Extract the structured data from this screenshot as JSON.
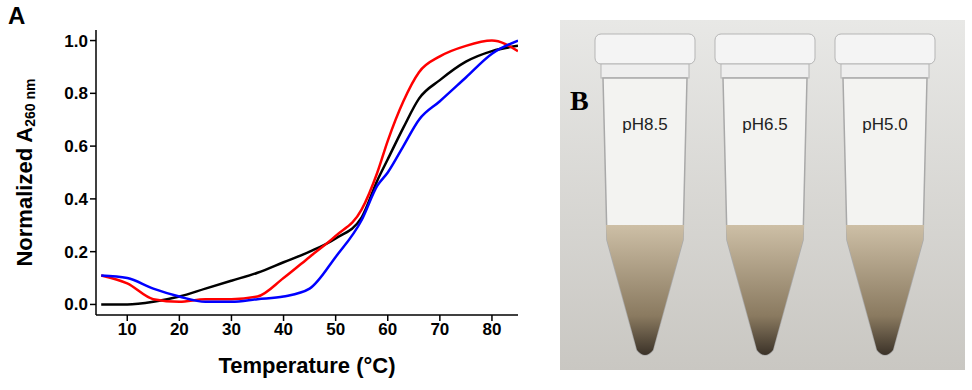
{
  "chart_data": {
    "type": "line",
    "title": "A",
    "x_label": "Temperature (°C)",
    "y_label": "Normalized A",
    "y_label_subscript": "260 nm",
    "x": [
      5,
      10,
      15,
      20,
      25,
      30,
      35,
      40,
      45,
      50,
      55,
      58,
      60,
      63,
      66,
      70,
      75,
      80,
      85
    ],
    "series": [
      {
        "color": "#000000",
        "values": [
          0.0,
          0.0,
          0.01,
          0.03,
          0.06,
          0.09,
          0.12,
          0.16,
          0.2,
          0.25,
          0.33,
          0.47,
          0.55,
          0.67,
          0.78,
          0.85,
          0.92,
          0.96,
          0.98
        ]
      },
      {
        "color": "#ff0000",
        "values": [
          0.11,
          0.08,
          0.02,
          0.01,
          0.02,
          0.02,
          0.03,
          0.1,
          0.18,
          0.26,
          0.36,
          0.5,
          0.62,
          0.77,
          0.88,
          0.94,
          0.98,
          1.0,
          0.96
        ]
      },
      {
        "color": "#0000ff",
        "values": [
          0.11,
          0.1,
          0.06,
          0.03,
          0.01,
          0.01,
          0.02,
          0.03,
          0.06,
          0.18,
          0.32,
          0.45,
          0.5,
          0.6,
          0.7,
          0.77,
          0.86,
          0.95,
          1.0
        ]
      }
    ],
    "xlim": [
      4,
      85
    ],
    "xticks": [
      10,
      20,
      30,
      40,
      50,
      60,
      70,
      80
    ],
    "ylim": [
      -0.04,
      1.04
    ],
    "yticks": [
      {
        "value": 0,
        "label": "0.0"
      },
      0.2,
      0.4,
      0.6,
      0.8,
      {
        "value": 1,
        "label": "1.0"
      }
    ],
    "grid": false
  },
  "photo": {
    "label": "B",
    "tubes": [
      "pH8.5",
      "pH6.5",
      "pH5.0"
    ]
  }
}
